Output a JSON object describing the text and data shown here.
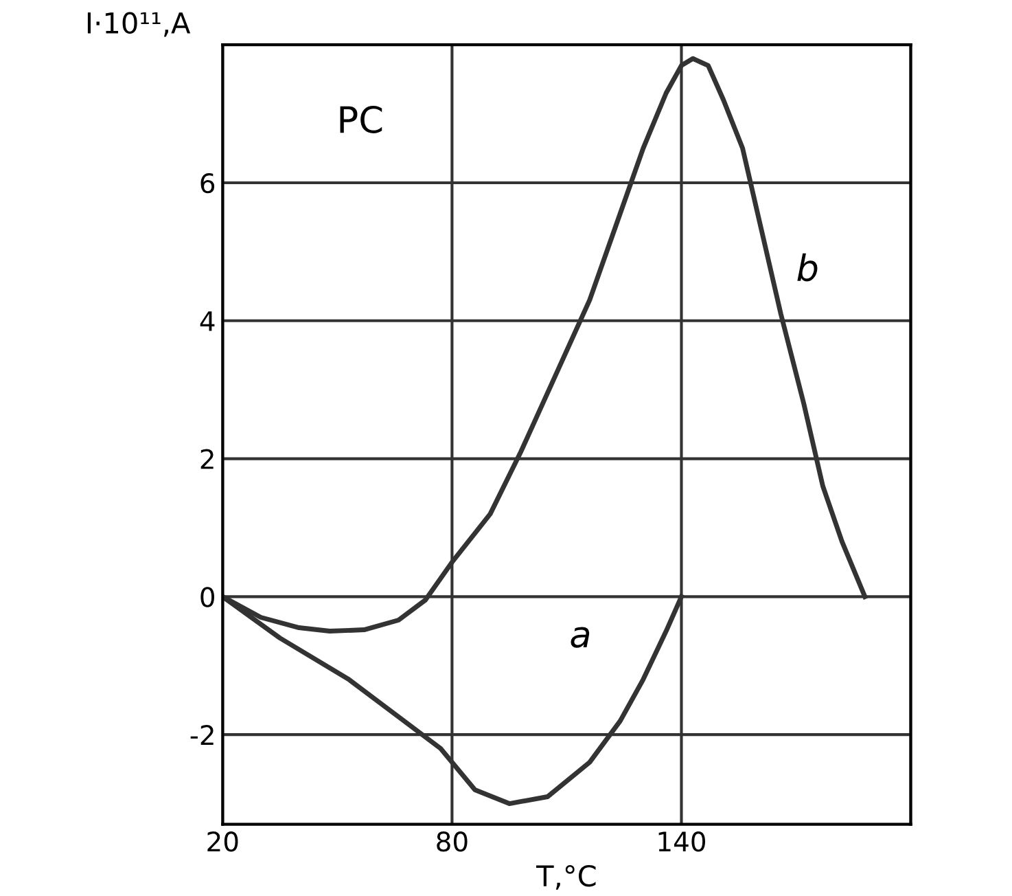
{
  "chart_data": {
    "type": "line",
    "xlabel": "T,°C",
    "ylabel": "I·10¹¹,A",
    "xlim": [
      20,
      200
    ],
    "xticks": [
      20,
      80,
      140,
      {
        "value": 200,
        "label": null
      }
    ],
    "ylim": [
      -3.3,
      8
    ],
    "yticks": [
      -2,
      0,
      2,
      4,
      6
    ],
    "grid": true,
    "marker": "none",
    "line_style": "solid",
    "series": [
      {
        "color": "#333333",
        "x": [
          20,
          35,
          53,
          65,
          77,
          86,
          95,
          105,
          116,
          124,
          130,
          136,
          140
        ],
        "values": [
          0,
          -0.6,
          -1.2,
          -1.7,
          -2.2,
          -2.8,
          -3.0,
          -2.9,
          -2.4,
          -1.8,
          -1.2,
          -0.5,
          0
        ]
      },
      {
        "color": "#333333",
        "x": [
          20,
          30,
          40,
          48,
          57,
          66,
          73,
          80,
          90,
          98,
          107,
          116,
          123,
          130,
          136,
          140,
          143,
          147,
          151,
          156,
          161,
          166,
          172,
          177,
          182,
          188
        ],
        "values": [
          0,
          -0.3,
          -0.45,
          -0.5,
          -0.48,
          -0.34,
          -0.05,
          0.5,
          1.2,
          2.1,
          3.2,
          4.3,
          5.4,
          6.5,
          7.3,
          7.7,
          7.8,
          7.7,
          7.2,
          6.5,
          5.3,
          4.1,
          2.8,
          1.6,
          0.8,
          0
        ]
      }
    ],
    "annotations": [
      "a",
      "b",
      "PC"
    ]
  }
}
